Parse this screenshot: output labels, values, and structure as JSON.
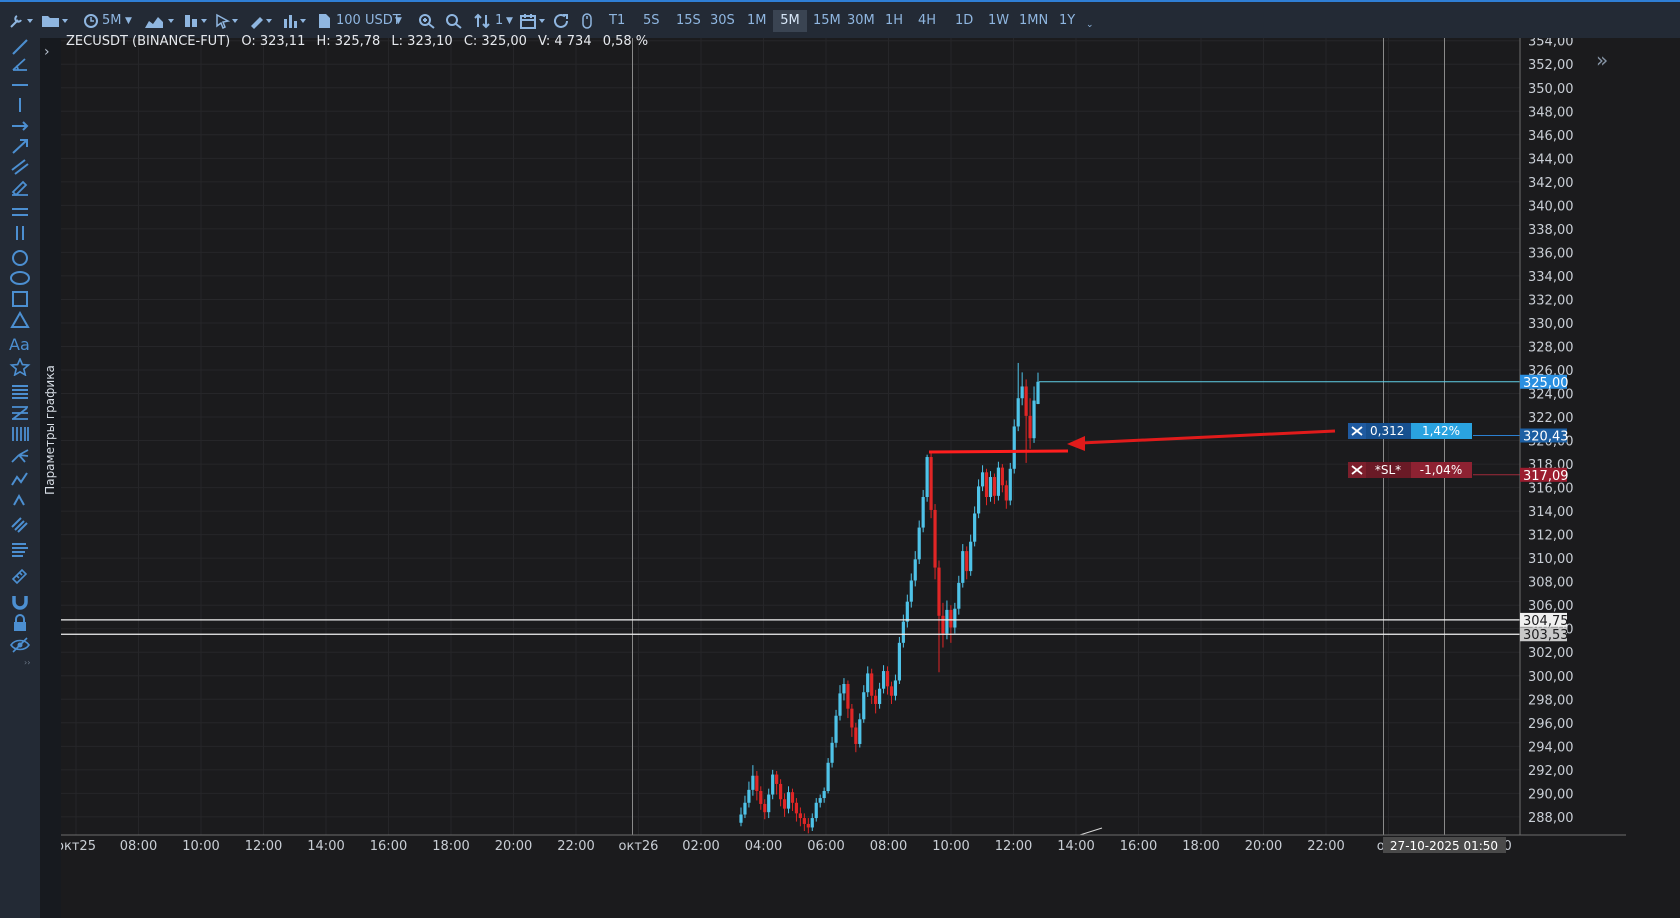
{
  "toolbar": {
    "timeframe_dropdown": "5M",
    "amount_dropdown": "100 USDT",
    "multiplier": "1",
    "timeframes": [
      "T1",
      "5S",
      "15S",
      "30S",
      "1M",
      "5M",
      "15M",
      "30M",
      "1H",
      "4H",
      "1D",
      "1W",
      "1MN",
      "1Y"
    ],
    "active_timeframe": "5M"
  },
  "sidebar": {
    "tools": [
      "brush-icon",
      "angle-icon",
      "horizontal-line-icon",
      "vertical-line-icon",
      "arrow-right-icon",
      "arrow-diagonal-icon",
      "parallel-lines-icon",
      "pen-icon",
      "double-horizontal-icon",
      "double-vertical-icon",
      "circle-icon",
      "ellipse-icon",
      "rectangle-icon",
      "triangle-icon",
      "text-icon",
      "star-icon",
      "fib-levels-icon",
      "fib-fan-icon",
      "fib-time-icon",
      "pitchfork-icon",
      "wave-icon",
      "curve-icon",
      "pattern-icon",
      "notes-icon",
      "ruler-icon",
      "magnet-icon",
      "lock-icon",
      "eye-off-icon"
    ]
  },
  "params_panel": {
    "label": "Параметры графика"
  },
  "ohlc": {
    "symbol": "ZECUSDT (BINANCE-FUT)",
    "open": "O: 323,11",
    "high": "H: 325,78",
    "low": "L: 323,10",
    "close": "C: 325,00",
    "volume": "V: 4 734",
    "change": "0,58 %"
  },
  "chart_data": {
    "type": "candlestick",
    "y_ticks": [
      "354,00",
      "352,00",
      "350,00",
      "348,00",
      "346,00",
      "344,00",
      "342,00",
      "340,00",
      "338,00",
      "336,00",
      "334,00",
      "332,00",
      "330,00",
      "328,00",
      "326,00",
      "324,00",
      "322,00",
      "320,00",
      "318,00",
      "316,00",
      "314,00",
      "312,00",
      "310,00",
      "308,00",
      "306,00",
      "304,00",
      "302,00",
      "300,00",
      "298,00",
      "296,00",
      "294,00",
      "292,00",
      "290,00",
      "288,00"
    ],
    "x_ticks": [
      "окт25",
      "08:00",
      "10:00",
      "12:00",
      "14:00",
      "16:00",
      "18:00",
      "20:00",
      "22:00",
      "окт26",
      "02:00",
      "04:00",
      "06:00",
      "08:00",
      "10:00",
      "12:00",
      "14:00",
      "16:00",
      "18:00",
      "20:00",
      "22:00",
      "окт",
      "14:00"
    ],
    "crosshair_time": "27-10-2025 01:50",
    "price_labels": {
      "current": "325,00",
      "take_profit": "320,43",
      "stop_loss": "317,09",
      "level_1": "304,75",
      "level_2": "303,53"
    },
    "candles": [
      {
        "o": 287.5,
        "c": 288.2,
        "h": 288.8,
        "l": 287.2
      },
      {
        "o": 288.2,
        "c": 289.2,
        "h": 289.8,
        "l": 287.9
      },
      {
        "o": 289.2,
        "c": 290.3,
        "h": 291.0,
        "l": 288.8
      },
      {
        "o": 290.3,
        "c": 291.5,
        "h": 292.4,
        "l": 289.8
      },
      {
        "o": 291.5,
        "c": 290.2,
        "h": 291.9,
        "l": 289.4
      },
      {
        "o": 290.2,
        "c": 289.1,
        "h": 290.6,
        "l": 288.6
      },
      {
        "o": 289.1,
        "c": 288.4,
        "h": 289.5,
        "l": 287.8
      },
      {
        "o": 288.4,
        "c": 289.9,
        "h": 290.4,
        "l": 287.9
      },
      {
        "o": 289.9,
        "c": 291.6,
        "h": 292.0,
        "l": 289.5
      },
      {
        "o": 291.6,
        "c": 290.8,
        "h": 291.9,
        "l": 289.9
      },
      {
        "o": 290.8,
        "c": 289.5,
        "h": 291.2,
        "l": 288.9
      },
      {
        "o": 289.5,
        "c": 288.7,
        "h": 290.0,
        "l": 288.0
      },
      {
        "o": 288.7,
        "c": 290.1,
        "h": 290.6,
        "l": 288.3
      },
      {
        "o": 290.1,
        "c": 289.2,
        "h": 290.4,
        "l": 288.5
      },
      {
        "o": 289.2,
        "c": 288.3,
        "h": 289.6,
        "l": 287.6
      },
      {
        "o": 288.3,
        "c": 287.9,
        "h": 288.8,
        "l": 287.2
      },
      {
        "o": 287.9,
        "c": 287.4,
        "h": 288.3,
        "l": 286.8
      },
      {
        "o": 287.4,
        "c": 287.1,
        "h": 287.9,
        "l": 286.6
      },
      {
        "o": 287.1,
        "c": 287.9,
        "h": 288.3,
        "l": 286.8
      },
      {
        "o": 287.9,
        "c": 289.2,
        "h": 289.6,
        "l": 287.6
      },
      {
        "o": 289.2,
        "c": 289.6,
        "h": 289.9,
        "l": 288.8
      },
      {
        "o": 289.6,
        "c": 290.2,
        "h": 290.5,
        "l": 289.2
      },
      {
        "o": 290.2,
        "c": 292.6,
        "h": 293.0,
        "l": 290.0
      },
      {
        "o": 292.6,
        "c": 294.3,
        "h": 294.8,
        "l": 292.2
      },
      {
        "o": 294.3,
        "c": 296.6,
        "h": 297.1,
        "l": 293.9
      },
      {
        "o": 296.6,
        "c": 298.5,
        "h": 299.2,
        "l": 296.2
      },
      {
        "o": 298.5,
        "c": 299.3,
        "h": 299.8,
        "l": 297.9
      },
      {
        "o": 299.3,
        "c": 297.2,
        "h": 299.6,
        "l": 296.4
      },
      {
        "o": 297.2,
        "c": 295.6,
        "h": 297.6,
        "l": 294.8
      },
      {
        "o": 295.6,
        "c": 294.2,
        "h": 296.0,
        "l": 293.5
      },
      {
        "o": 294.2,
        "c": 296.3,
        "h": 296.8,
        "l": 293.9
      },
      {
        "o": 296.3,
        "c": 298.6,
        "h": 299.2,
        "l": 296.0
      },
      {
        "o": 298.6,
        "c": 300.2,
        "h": 300.8,
        "l": 298.2
      },
      {
        "o": 300.2,
        "c": 298.3,
        "h": 300.6,
        "l": 297.6
      },
      {
        "o": 298.3,
        "c": 297.6,
        "h": 298.8,
        "l": 296.8
      },
      {
        "o": 297.6,
        "c": 298.9,
        "h": 299.4,
        "l": 297.2
      },
      {
        "o": 298.9,
        "c": 300.4,
        "h": 300.9,
        "l": 298.5
      },
      {
        "o": 300.4,
        "c": 299.1,
        "h": 300.8,
        "l": 298.4
      },
      {
        "o": 299.1,
        "c": 298.3,
        "h": 299.5,
        "l": 297.6
      },
      {
        "o": 298.3,
        "c": 299.6,
        "h": 300.1,
        "l": 297.9
      },
      {
        "o": 299.6,
        "c": 302.8,
        "h": 303.3,
        "l": 299.3
      },
      {
        "o": 302.8,
        "c": 304.6,
        "h": 305.2,
        "l": 302.4
      },
      {
        "o": 304.6,
        "c": 306.3,
        "h": 306.9,
        "l": 304.1
      },
      {
        "o": 306.3,
        "c": 308.1,
        "h": 308.7,
        "l": 305.8
      },
      {
        "o": 308.1,
        "c": 309.9,
        "h": 310.6,
        "l": 307.6
      },
      {
        "o": 309.9,
        "c": 312.6,
        "h": 313.2,
        "l": 309.5
      },
      {
        "o": 312.6,
        "c": 315.2,
        "h": 315.8,
        "l": 312.2
      },
      {
        "o": 315.2,
        "c": 318.6,
        "h": 318.8,
        "l": 314.8
      },
      {
        "o": 318.6,
        "c": 314.1,
        "h": 318.9,
        "l": 313.4
      },
      {
        "o": 314.1,
        "c": 309.2,
        "h": 314.6,
        "l": 308.2
      },
      {
        "o": 309.2,
        "c": 305.1,
        "h": 309.8,
        "l": 300.3
      },
      {
        "o": 305.1,
        "c": 303.6,
        "h": 306.2,
        "l": 302.4
      },
      {
        "o": 303.6,
        "c": 305.6,
        "h": 306.4,
        "l": 303.1
      },
      {
        "o": 305.6,
        "c": 304.1,
        "h": 306.0,
        "l": 302.8
      },
      {
        "o": 304.1,
        "c": 305.7,
        "h": 306.2,
        "l": 303.6
      },
      {
        "o": 305.7,
        "c": 307.9,
        "h": 308.5,
        "l": 305.2
      },
      {
        "o": 307.9,
        "c": 310.6,
        "h": 311.2,
        "l": 307.5
      },
      {
        "o": 310.6,
        "c": 308.9,
        "h": 311.0,
        "l": 308.2
      },
      {
        "o": 308.9,
        "c": 311.4,
        "h": 312.0,
        "l": 308.5
      },
      {
        "o": 311.4,
        "c": 313.8,
        "h": 314.4,
        "l": 311.0
      },
      {
        "o": 313.8,
        "c": 316.1,
        "h": 316.7,
        "l": 313.4
      },
      {
        "o": 316.1,
        "c": 317.3,
        "h": 317.9,
        "l": 315.7
      },
      {
        "o": 317.3,
        "c": 315.2,
        "h": 317.6,
        "l": 314.5
      },
      {
        "o": 315.2,
        "c": 316.9,
        "h": 317.4,
        "l": 314.8
      },
      {
        "o": 316.9,
        "c": 315.3,
        "h": 317.2,
        "l": 314.6
      },
      {
        "o": 315.3,
        "c": 317.7,
        "h": 318.2,
        "l": 314.9
      },
      {
        "o": 317.7,
        "c": 316.2,
        "h": 318.0,
        "l": 315.6
      },
      {
        "o": 316.2,
        "c": 314.9,
        "h": 316.6,
        "l": 314.2
      },
      {
        "o": 314.9,
        "c": 317.6,
        "h": 318.1,
        "l": 314.5
      },
      {
        "o": 317.6,
        "c": 321.2,
        "h": 321.8,
        "l": 317.2
      },
      {
        "o": 321.2,
        "c": 323.6,
        "h": 326.6,
        "l": 320.8
      },
      {
        "o": 323.6,
        "c": 324.6,
        "h": 325.8,
        "l": 323.0
      },
      {
        "o": 324.6,
        "c": 322.1,
        "h": 325.2,
        "l": 318.1
      },
      {
        "o": 322.1,
        "c": 320.2,
        "h": 323.6,
        "l": 319.3
      },
      {
        "o": 320.2,
        "c": 323.4,
        "h": 324.6,
        "l": 319.8
      },
      {
        "o": 323.11,
        "c": 325.0,
        "h": 325.78,
        "l": 323.1
      }
    ]
  },
  "position_panel": {
    "tp_size": "0,312",
    "tp_percent": "1,42%",
    "sl_label": "*SL*",
    "sl_percent": "-1,04%"
  },
  "colors": {
    "background": "#1b1b1d",
    "bullish": "#4fc3e8",
    "bearish": "#e02626",
    "tp_blue": "#1f8ad6",
    "sl_red": "#7d1f2c",
    "toolbar_text": "#8fb6e0"
  }
}
